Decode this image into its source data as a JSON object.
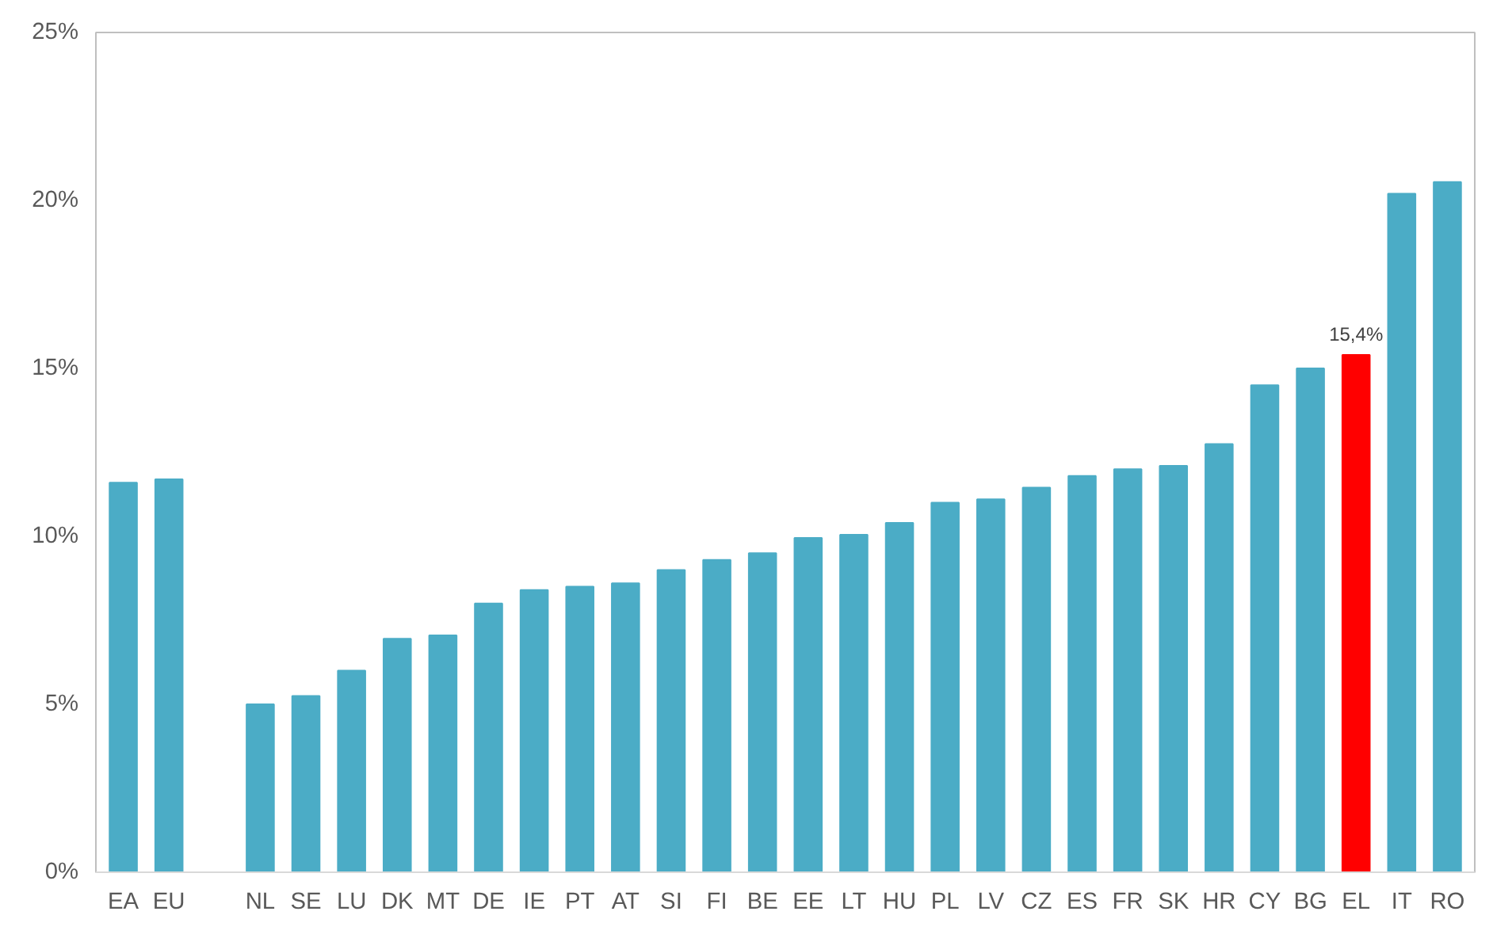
{
  "chart_data": {
    "type": "bar",
    "categories": [
      "EA",
      "EU",
      null,
      "NL",
      "SE",
      "LU",
      "DK",
      "MT",
      "DE",
      "IE",
      "PT",
      "AT",
      "SI",
      "FI",
      "BE",
      "EE",
      "LT",
      "HU",
      "PL",
      "LV",
      "CZ",
      "ES",
      "FR",
      "SK",
      "HR",
      "CY",
      "BG",
      "EL",
      "IT",
      "RO"
    ],
    "values": [
      11.6,
      11.7,
      null,
      5.0,
      5.25,
      6.0,
      6.95,
      7.05,
      8.0,
      8.4,
      8.5,
      8.6,
      9.0,
      9.3,
      9.5,
      9.95,
      10.05,
      10.4,
      11.0,
      11.1,
      11.45,
      11.8,
      12.0,
      12.1,
      12.75,
      14.5,
      15.0,
      15.4,
      20.2,
      20.55
    ],
    "colors": [
      "#4bacc6",
      "#4bacc6",
      null,
      "#4bacc6",
      "#4bacc6",
      "#4bacc6",
      "#4bacc6",
      "#4bacc6",
      "#4bacc6",
      "#4bacc6",
      "#4bacc6",
      "#4bacc6",
      "#4bacc6",
      "#4bacc6",
      "#4bacc6",
      "#4bacc6",
      "#4bacc6",
      "#4bacc6",
      "#4bacc6",
      "#4bacc6",
      "#4bacc6",
      "#4bacc6",
      "#4bacc6",
      "#4bacc6",
      "#4bacc6",
      "#4bacc6",
      "#4bacc6",
      "#ff0000",
      "#4bacc6",
      "#4bacc6"
    ],
    "value_labels": [
      null,
      null,
      null,
      null,
      null,
      null,
      null,
      null,
      null,
      null,
      null,
      null,
      null,
      null,
      null,
      null,
      null,
      null,
      null,
      null,
      null,
      null,
      null,
      null,
      null,
      null,
      null,
      "15,4%",
      null,
      null
    ],
    "ylim": [
      0,
      25
    ],
    "yticks": [
      {
        "value": 0,
        "label": "0%"
      },
      {
        "value": 5,
        "label": "5%"
      },
      {
        "value": 10,
        "label": "10%"
      },
      {
        "value": 15,
        "label": "15%"
      },
      {
        "value": 20,
        "label": "20%"
      },
      {
        "value": 25,
        "label": "25%"
      }
    ],
    "grid": false
  }
}
